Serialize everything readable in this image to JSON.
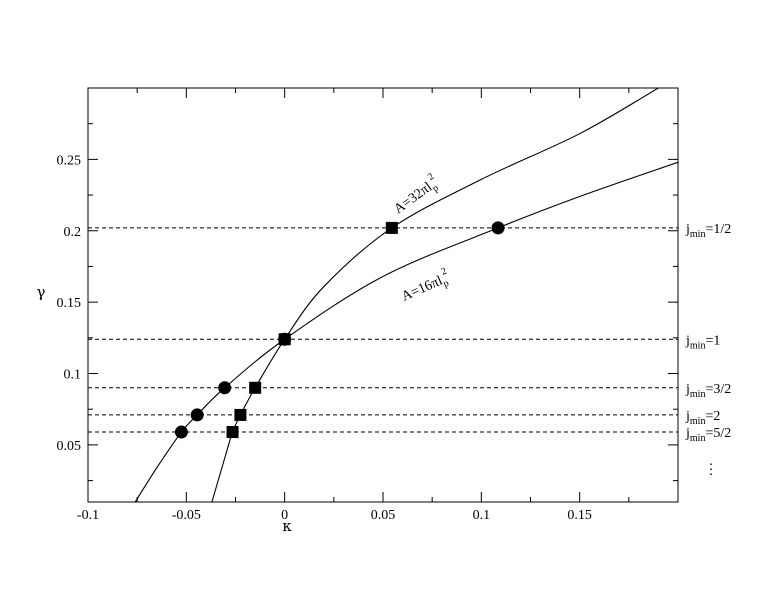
{
  "chart_data": {
    "type": "line",
    "xlabel": "κ",
    "ylabel": "γ",
    "xlim": [
      -0.1,
      0.2
    ],
    "ylim": [
      0.01,
      0.3
    ],
    "x_ticks": [
      {
        "value": -0.1,
        "label": "-0.1"
      },
      {
        "value": -0.05,
        "label": "-0.05"
      },
      {
        "value": 0,
        "label": "0"
      },
      {
        "value": 0.05,
        "label": "0.05"
      },
      {
        "value": 0.1,
        "label": "0.1"
      },
      {
        "value": 0.15,
        "label": "0.15"
      }
    ],
    "y_ticks": [
      {
        "value": 0.05,
        "label": "0.05"
      },
      {
        "value": 0.1,
        "label": "0.1"
      },
      {
        "value": 0.15,
        "label": "0.15"
      },
      {
        "value": 0.2,
        "label": "0.2"
      },
      {
        "value": 0.25,
        "label": "0.25"
      }
    ],
    "grid": false,
    "series": [
      {
        "name": "A=32πl_p^2",
        "label_main": "A=32πl",
        "label_sub": "p",
        "label_sup": "2",
        "marker": "square",
        "x": [
          -0.037,
          -0.03,
          -0.0265,
          -0.0225,
          -0.015,
          0,
          0.02,
          0.0545,
          0.1,
          0.15,
          0.19
        ],
        "y": [
          0.01,
          0.043,
          0.059,
          0.071,
          0.09,
          0.124,
          0.161,
          0.202,
          0.236,
          0.268,
          0.3
        ],
        "points": [
          {
            "x": -0.0265,
            "y": 0.059
          },
          {
            "x": -0.0225,
            "y": 0.071
          },
          {
            "x": -0.015,
            "y": 0.09
          },
          {
            "x": 0,
            "y": 0.124
          },
          {
            "x": 0.0545,
            "y": 0.202
          }
        ]
      },
      {
        "name": "A=16πl_p^2",
        "label_main": "A=16πl",
        "label_sub": "p",
        "label_sup": "2",
        "marker": "circle",
        "x": [
          -0.076,
          -0.065,
          -0.0525,
          -0.0445,
          -0.0305,
          0,
          0.05,
          0.1085,
          0.15,
          0.2
        ],
        "y": [
          0.01,
          0.034,
          0.059,
          0.071,
          0.09,
          0.124,
          0.168,
          0.202,
          0.224,
          0.248
        ],
        "points": [
          {
            "x": -0.0525,
            "y": 0.059
          },
          {
            "x": -0.0445,
            "y": 0.071
          },
          {
            "x": -0.0305,
            "y": 0.09
          },
          {
            "x": 0,
            "y": 0.124
          },
          {
            "x": 0.1085,
            "y": 0.202
          }
        ]
      }
    ],
    "hlines": [
      {
        "y": 0.202,
        "label_main": "j",
        "label_sub": "min",
        "label_rest": "=1/2"
      },
      {
        "y": 0.124,
        "label_main": "j",
        "label_sub": "min",
        "label_rest": "=1"
      },
      {
        "y": 0.09,
        "label_main": "j",
        "label_sub": "min",
        "label_rest": "=3/2"
      },
      {
        "y": 0.071,
        "label_main": "j",
        "label_sub": "min",
        "label_rest": "=2"
      },
      {
        "y": 0.059,
        "label_main": "j",
        "label_sub": "min",
        "label_rest": "=5/2"
      }
    ],
    "ellipsis": "⋮"
  }
}
